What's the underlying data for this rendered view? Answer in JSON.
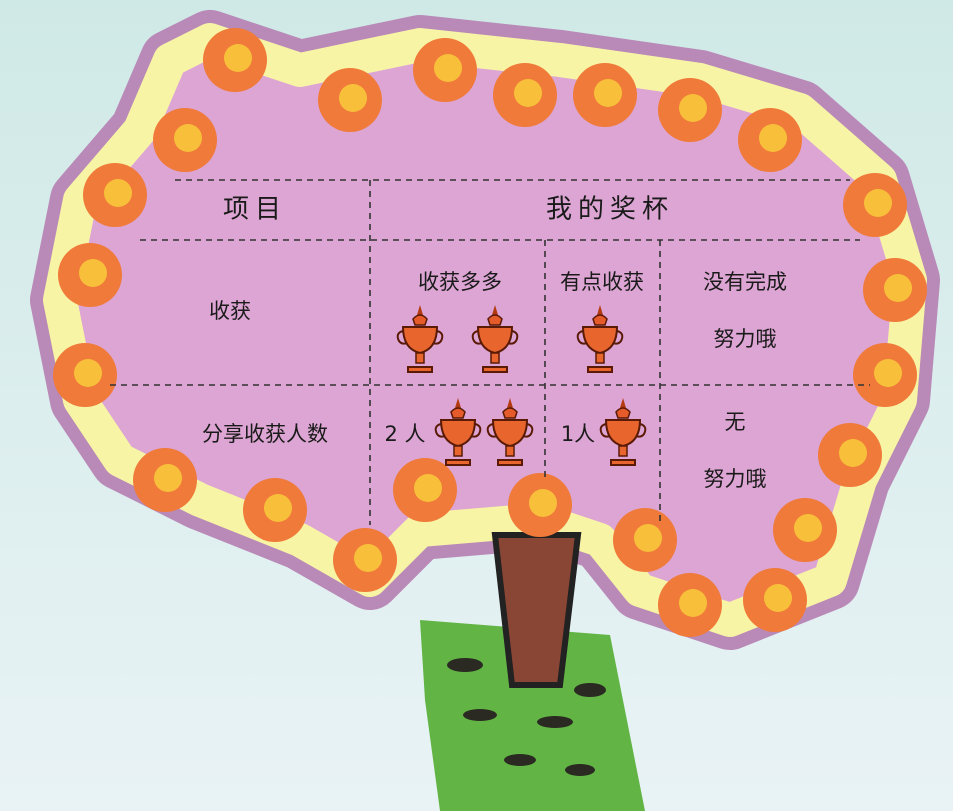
{
  "table": {
    "header": [
      "项目",
      "我的奖杯"
    ],
    "rows": [
      [
        "收获",
        "收获多多",
        "有点收获",
        [
          "没有完成",
          "努力哦"
        ]
      ],
      [
        "分享收获人数",
        "2 人",
        "1人",
        [
          "无",
          "努力哦"
        ]
      ]
    ]
  }
}
